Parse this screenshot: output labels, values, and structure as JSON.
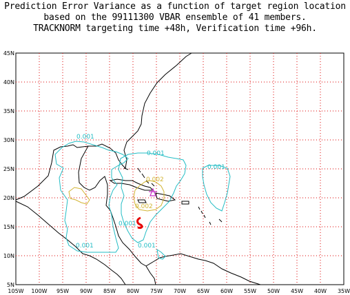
{
  "title": {
    "line1": "Prediction Error Variance as a function of target region location",
    "line2": "based on the 99111300 VBAR ensemble of 41 members.",
    "line3": "TRACKNORM targeting time +48h, Verification time +96h."
  },
  "axes": {
    "lon_ticks": [
      "105W",
      "100W",
      "95W",
      "90W",
      "85W",
      "80W",
      "75W",
      "70W",
      "65W",
      "60W",
      "55W",
      "50W",
      "45W",
      "40W",
      "35W"
    ],
    "lat_ticks": [
      "5N",
      "10N",
      "15N",
      "20N",
      "25N",
      "30N",
      "35N",
      "40N",
      "45N"
    ],
    "lon_range": [
      -105,
      -35
    ],
    "lat_range": [
      5,
      45
    ]
  },
  "contours": {
    "cyan_color": "#22bcc4",
    "yellow_color": "#d2b432",
    "max_color": "#e60000",
    "min_color": "#c832c8",
    "labels": [
      {
        "text": "0.001",
        "color": "cyan"
      },
      {
        "text": "0.001",
        "color": "cyan"
      },
      {
        "text": "0.001",
        "color": "cyan"
      },
      {
        "text": "0.001",
        "color": "cyan"
      },
      {
        "text": "0.001",
        "color": "cyan"
      },
      {
        "text": "0.001",
        "color": "cyan"
      },
      {
        "text": "0.002",
        "color": "yellow"
      },
      {
        "text": "0.002",
        "color": "yellow"
      }
    ]
  }
}
